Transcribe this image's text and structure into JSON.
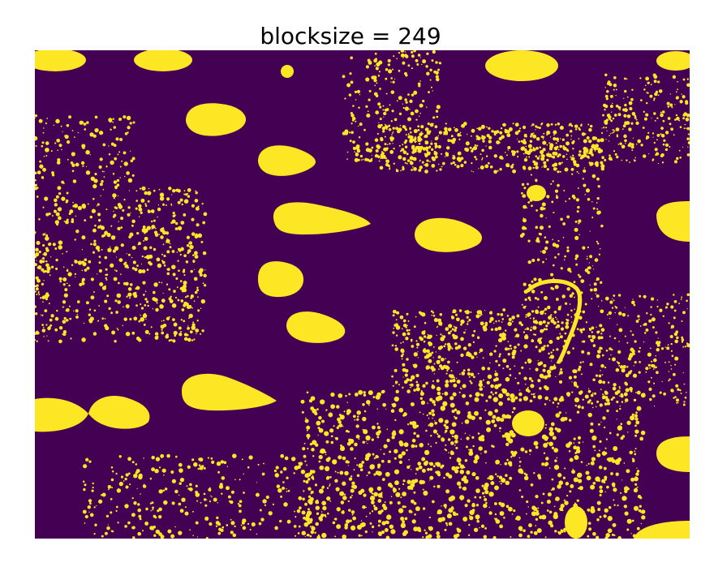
{
  "figure": {
    "title": "blocksize = 249",
    "colors": {
      "background": "#440154",
      "foreground": "#fde725"
    }
  }
}
